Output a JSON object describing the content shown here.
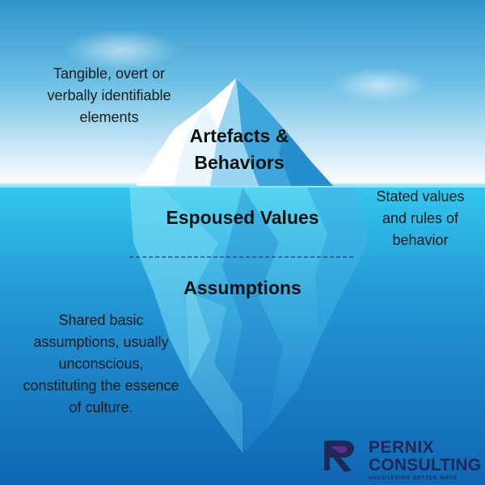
{
  "top_left_note": {
    "lines": [
      "Tangible, overt or",
      "verbally identifiable",
      "elements"
    ]
  },
  "level_artefacts": {
    "lines": [
      "Artefacts &",
      "Behaviors"
    ]
  },
  "level_espoused": {
    "label": "Espoused Values"
  },
  "right_note": {
    "lines": [
      "Stated values",
      "and rules of",
      "behavior"
    ]
  },
  "level_assumptions": {
    "label": "Assumptions"
  },
  "bottom_left_note": {
    "lines": [
      "Shared basic",
      "assumptions, usually",
      "unconscious,",
      "constituting the essence",
      "of culture."
    ]
  },
  "logo": {
    "line1": "PERNIX",
    "line2": "CONSULTING",
    "tagline": "UNCOVERING BETTER WAYS"
  },
  "colors": {
    "sky_top": "#2f95cc",
    "sky_bottom": "#ffffff",
    "water_top": "#33c9ee",
    "water_bottom": "#0f66b2",
    "logo_navy": "#1e2a55",
    "logo_purple": "#5a2d91"
  }
}
